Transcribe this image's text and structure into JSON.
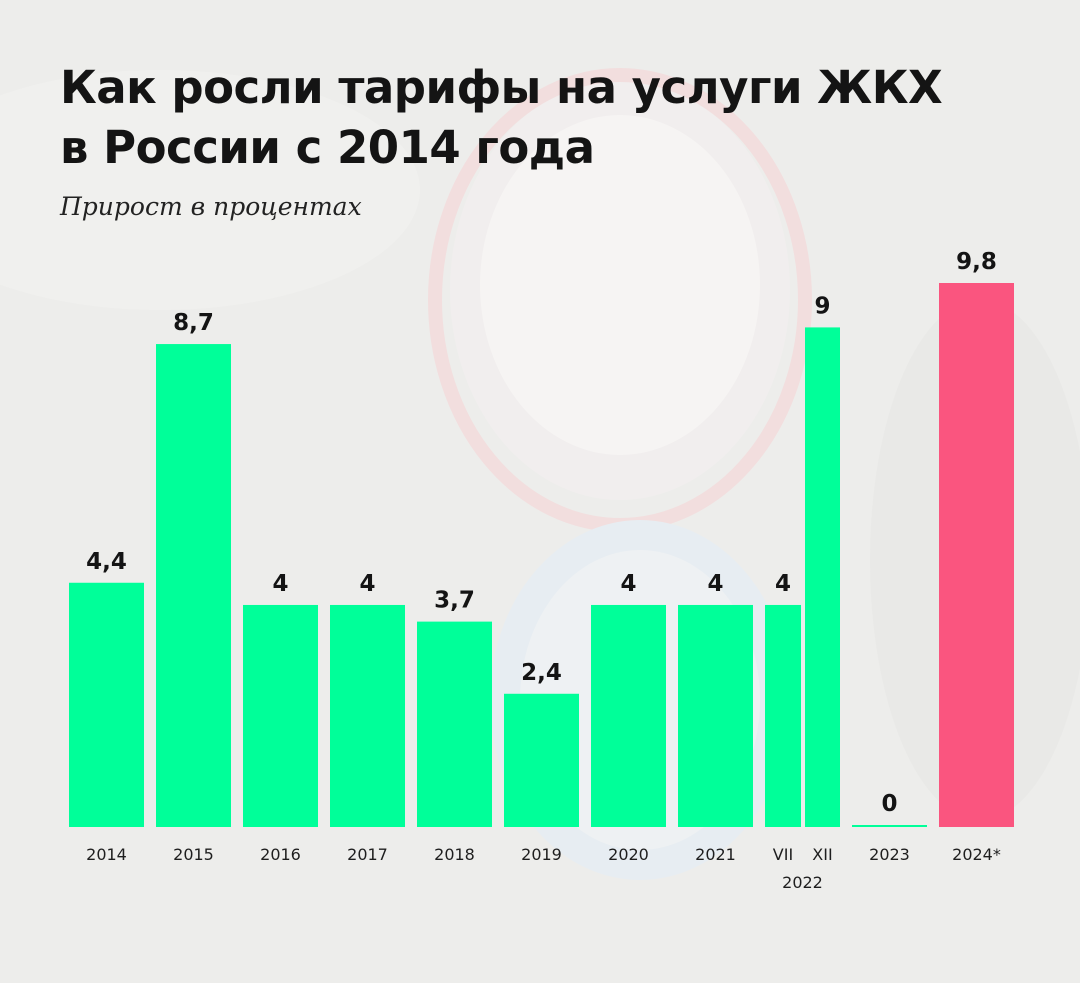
{
  "title_lines": [
    "Как росли тарифы на услуги ЖКХ",
    "в России с 2014 года"
  ],
  "subtitle": "Прирост в процентах",
  "colors": {
    "bar": "#00ff99",
    "highlight": "#fa557f",
    "text": "#141414",
    "background": "#eeeeec"
  },
  "chart_data": {
    "type": "bar",
    "title": "Как росли тарифы на услуги ЖКХ в России с 2014 года",
    "ylabel": "Прирост в процентах",
    "ylim": [
      0,
      9.8
    ],
    "grid": false,
    "legend": "none",
    "categories": [
      "2014",
      "2015",
      "2016",
      "2017",
      "2018",
      "2019",
      "2020",
      "2021",
      "VII",
      "XII",
      "2023",
      "2024*"
    ],
    "group_labels": [
      {
        "text": "2022",
        "members": [
          "VII",
          "XII"
        ]
      }
    ],
    "values": [
      4.4,
      8.7,
      4,
      4,
      3.7,
      2.4,
      4,
      4,
      4,
      9,
      0,
      9.8
    ],
    "value_labels": [
      "4,4",
      "8,7",
      "4",
      "4",
      "3,7",
      "2,4",
      "4",
      "4",
      "4",
      "9",
      "0",
      "9,8"
    ],
    "highlight": [
      "2024*"
    ]
  }
}
